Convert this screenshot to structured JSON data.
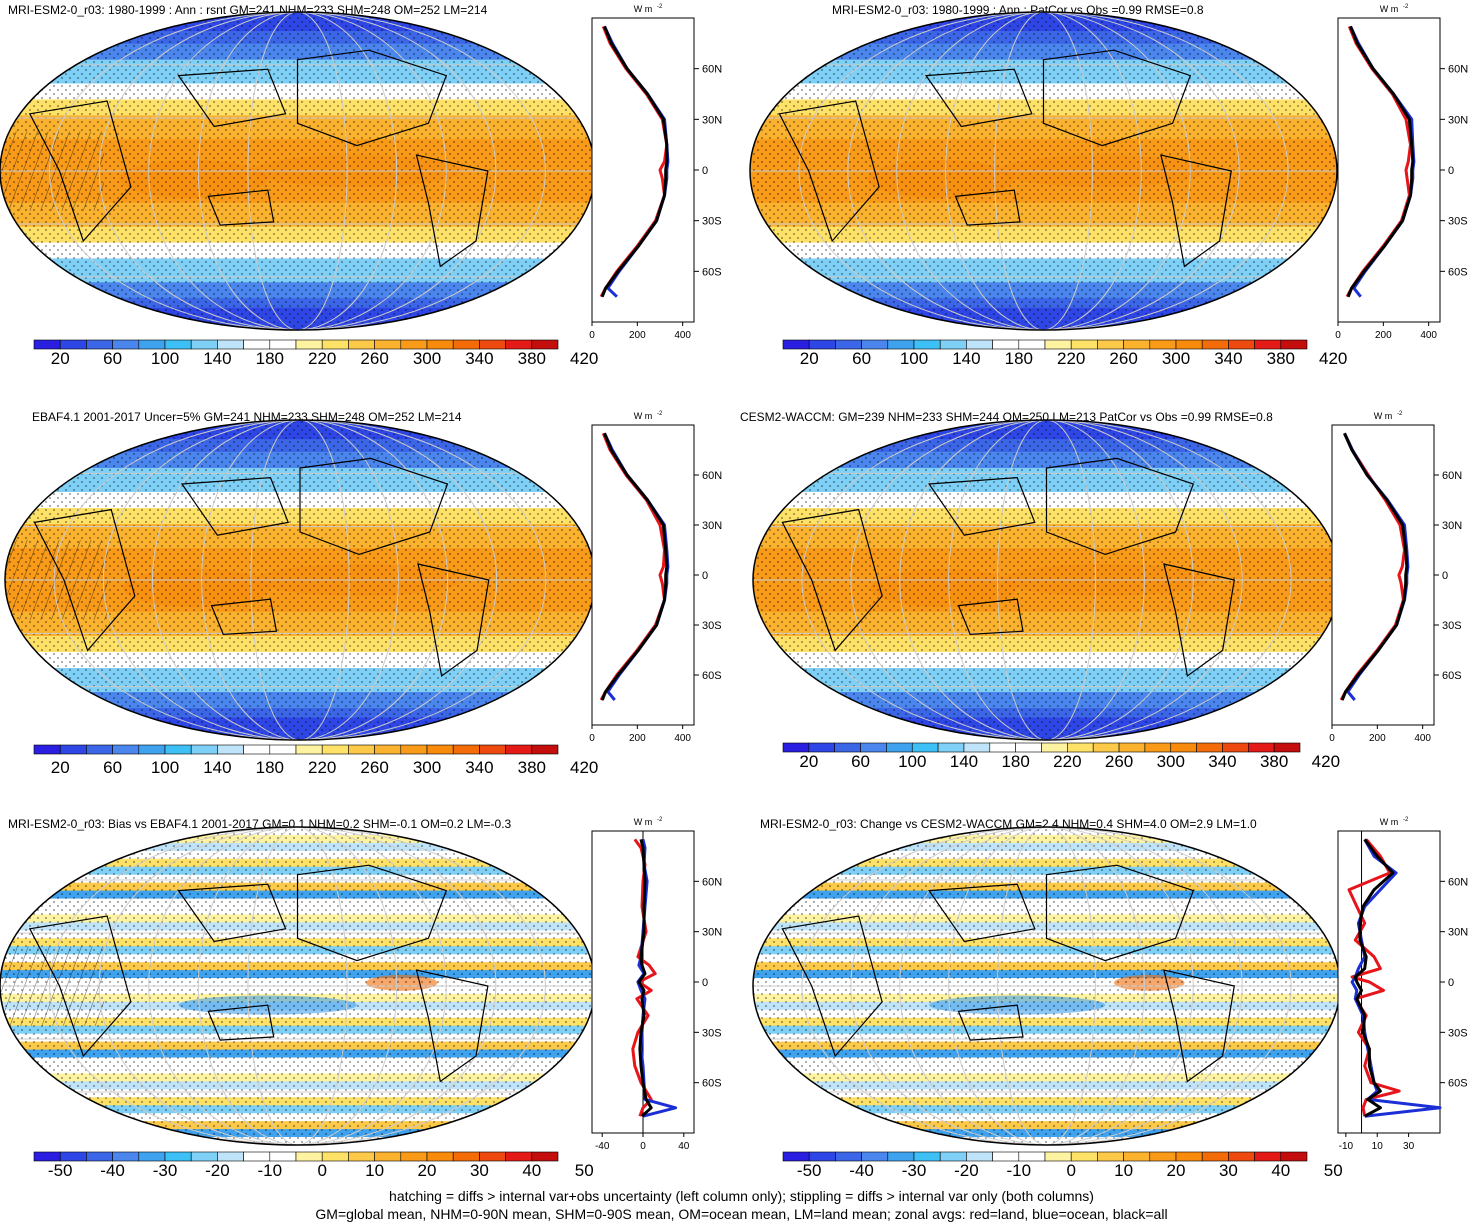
{
  "footer": {
    "line1": "hatching = diffs > internal var+obs uncertainty (left column only); stippling = diffs > internal var only (both columns)",
    "line2": "GM=global mean, NHM=0-90N mean, SHM=0-90S mean, OM=ocean mean, LM=land mean; zonal avgs: red=land, blue=ocean, black=all"
  },
  "colors": {
    "land": "#e8141b",
    "ocean": "#1b2fd6",
    "all": "#000000",
    "abs_palette": [
      "#2a1ee0",
      "#2e46e6",
      "#3c66e8",
      "#4a86ee",
      "#3fa2ee",
      "#3cc0f5",
      "#7ed0f6",
      "#bfe4f9",
      "#ffffff",
      "#ffffff",
      "#fef3a0",
      "#fee167",
      "#fdc948",
      "#fbb22e",
      "#f99b18",
      "#f88a0c",
      "#f46c08",
      "#ee4a10",
      "#e41a16",
      "#c40d0d"
    ],
    "diff_palette": [
      "#2a1ee0",
      "#2e46e6",
      "#3c66e8",
      "#4a86ee",
      "#3fa2ee",
      "#3cc0f5",
      "#7ed0f6",
      "#bfe4f9",
      "#ffffff",
      "#ffffff",
      "#fef3a0",
      "#fee167",
      "#fdc948",
      "#fbb22e",
      "#f99b18",
      "#f88a0c",
      "#f46c08",
      "#ee4a10",
      "#e41a16",
      "#c40d0d"
    ]
  },
  "chart_data": [
    {
      "type": "heatmap",
      "title": "MRI-ESM2-0_r03: 1980-1999 : Ann : rsnt GM=241 NHM=233 SHM=248 OM=252 LM=214",
      "colorbar_labels": [
        "20",
        "60",
        "100",
        "140",
        "180",
        "220",
        "260",
        "300",
        "340",
        "380",
        "420"
      ],
      "zonal": {
        "units": "W m-2",
        "xticks": [
          "0",
          "200",
          "400"
        ],
        "xlim": [
          0,
          450
        ],
        "yticks": [
          "60N",
          "30N",
          "0",
          "30S",
          "60S"
        ],
        "lat": [
          85,
          75,
          60,
          45,
          30,
          15,
          5,
          0,
          -5,
          -15,
          -30,
          -45,
          -60,
          -70,
          -75
        ],
        "series": [
          {
            "name": "land",
            "values": [
              50,
              80,
              150,
              240,
              310,
              330,
              320,
              300,
              310,
              320,
              280,
              200,
              110,
              60,
              40
            ]
          },
          {
            "name": "ocean",
            "values": [
              55,
              90,
              155,
              245,
              320,
              330,
              335,
              330,
              330,
              320,
              285,
              205,
              120,
              70,
              110
            ]
          },
          {
            "name": "all",
            "values": [
              55,
              85,
              155,
              245,
              315,
              330,
              330,
              325,
              325,
              320,
              285,
              205,
              115,
              60,
              45
            ]
          }
        ]
      }
    },
    {
      "type": "heatmap",
      "title": "MRI-ESM2-0_r03: 1980-1999 : Ann : PatCor vs Obs =0.99 RMSE=0.8",
      "colorbar_labels": [
        "20",
        "60",
        "100",
        "140",
        "180",
        "220",
        "260",
        "300",
        "340",
        "380",
        "420"
      ],
      "zonal": {
        "units": "W m-2",
        "xticks": [
          "0",
          "200",
          "400"
        ],
        "xlim": [
          0,
          450
        ],
        "yticks": [
          "60N",
          "30N",
          "0",
          "30S",
          "60S"
        ],
        "lat": [
          85,
          75,
          60,
          45,
          30,
          15,
          5,
          0,
          -5,
          -15,
          -30,
          -45,
          -60,
          -70,
          -75
        ],
        "series": [
          {
            "name": "land",
            "values": [
              50,
              80,
              150,
              240,
              300,
              320,
              310,
              300,
              305,
              315,
              280,
              200,
              110,
              60,
              40
            ]
          },
          {
            "name": "ocean",
            "values": [
              55,
              90,
              155,
              245,
              325,
              330,
              335,
              330,
              330,
              320,
              285,
              205,
              120,
              70,
              100
            ]
          },
          {
            "name": "all",
            "values": [
              55,
              85,
              155,
              245,
              315,
              325,
              330,
              325,
              325,
              320,
              285,
              205,
              115,
              60,
              45
            ]
          }
        ]
      }
    },
    {
      "type": "heatmap",
      "title": "EBAF4.1 2001-2017 Uncer=5% GM=241 NHM=233 SHM=248 OM=252 LM=214",
      "colorbar_labels": [
        "20",
        "60",
        "100",
        "140",
        "180",
        "220",
        "260",
        "300",
        "340",
        "380",
        "420"
      ],
      "zonal": {
        "units": "W m-2",
        "xticks": [
          "0",
          "200",
          "400"
        ],
        "xlim": [
          0,
          450
        ],
        "yticks": [
          "60N",
          "30N",
          "0",
          "30S",
          "60S"
        ],
        "lat": [
          85,
          75,
          60,
          45,
          30,
          15,
          5,
          0,
          -5,
          -15,
          -30,
          -45,
          -60,
          -70,
          -75
        ],
        "series": [
          {
            "name": "land",
            "values": [
              50,
              80,
              150,
              240,
              300,
              320,
              315,
              300,
              310,
              320,
              280,
              200,
              110,
              60,
              40
            ]
          },
          {
            "name": "ocean",
            "values": [
              55,
              90,
              155,
              245,
              320,
              330,
              335,
              330,
              330,
              320,
              285,
              205,
              120,
              70,
              100
            ]
          },
          {
            "name": "all",
            "values": [
              55,
              85,
              155,
              245,
              315,
              325,
              330,
              325,
              325,
              320,
              285,
              205,
              115,
              60,
              45
            ]
          }
        ]
      }
    },
    {
      "type": "heatmap",
      "title": "CESM2-WACCM: GM=239 NHM=233 SHM=244 OM=250 LM=213 PatCor vs Obs =0.99 RMSE=0.8",
      "colorbar_labels": [
        "20",
        "60",
        "100",
        "140",
        "180",
        "220",
        "260",
        "300",
        "340",
        "380",
        "420"
      ],
      "zonal": {
        "units": "W m-2",
        "xticks": [
          "0",
          "200",
          "400"
        ],
        "xlim": [
          0,
          450
        ],
        "yticks": [
          "60N",
          "30N",
          "0",
          "30S",
          "60S"
        ],
        "lat": [
          85,
          75,
          60,
          45,
          30,
          15,
          5,
          0,
          -5,
          -15,
          -30,
          -45,
          -60,
          -70,
          -75
        ],
        "series": [
          {
            "name": "land",
            "values": [
              55,
              90,
              160,
              235,
              300,
              320,
              310,
              295,
              305,
              315,
              280,
              200,
              110,
              60,
              40
            ]
          },
          {
            "name": "ocean",
            "values": [
              55,
              90,
              155,
              245,
              320,
              330,
              335,
              330,
              330,
              320,
              285,
              205,
              120,
              70,
              100
            ]
          },
          {
            "name": "all",
            "values": [
              55,
              88,
              155,
              242,
              312,
              325,
              330,
              325,
              325,
              318,
              285,
              205,
              115,
              60,
              45
            ]
          }
        ]
      }
    },
    {
      "type": "heatmap",
      "title": "MRI-ESM2-0_r03: Bias vs EBAF4.1 2001-2017 GM=0.1 NHM=0.2 SHM=-0.1 OM=0.2 LM=-0.3",
      "colorbar_labels": [
        "-50",
        "-40",
        "-30",
        "-20",
        "-10",
        "0",
        "10",
        "20",
        "30",
        "40",
        "50"
      ],
      "zonal": {
        "units": "W m-2",
        "xticks": [
          "-40",
          "0",
          "40"
        ],
        "xlim": [
          -50,
          50
        ],
        "yticks": [
          "60N",
          "30N",
          "0",
          "30S",
          "60S"
        ],
        "lat": [
          85,
          80,
          70,
          60,
          45,
          30,
          15,
          10,
          5,
          0,
          -5,
          -10,
          -20,
          -30,
          -40,
          -50,
          -60,
          -70,
          -75,
          -80
        ],
        "series": [
          {
            "name": "land",
            "values": [
              -8,
              -2,
              2,
              0,
              -1,
              3,
              -5,
              6,
              12,
              -4,
              8,
              -6,
              5,
              -5,
              -10,
              -8,
              -2,
              8,
              0,
              -3
            ]
          },
          {
            "name": "ocean",
            "values": [
              0,
              2,
              1,
              4,
              2,
              0,
              -2,
              -4,
              1,
              -5,
              -2,
              2,
              0,
              -1,
              -2,
              0,
              1,
              2,
              32,
              0
            ]
          },
          {
            "name": "all",
            "values": [
              -2,
              0,
              1,
              2,
              1,
              1,
              -2,
              -1,
              2,
              -4,
              1,
              -1,
              1,
              -2,
              -3,
              -2,
              0,
              3,
              8,
              -1
            ]
          }
        ]
      }
    },
    {
      "type": "heatmap",
      "title": "MRI-ESM2-0_r03: Change vs CESM2-WACCM GM=2.4 NHM=0.4 SHM=4.0 OM=2.9 LM=1.0",
      "colorbar_labels": [
        "-50",
        "-40",
        "-30",
        "-20",
        "-10",
        "0",
        "10",
        "20",
        "30",
        "40",
        "50"
      ],
      "zonal": {
        "units": "W m-2",
        "xticks": [
          "-10",
          "10",
          "30"
        ],
        "xlim": [
          -15,
          50
        ],
        "yticks": [
          "60N",
          "30N",
          "0",
          "30S",
          "60S"
        ],
        "lat": [
          85,
          75,
          65,
          55,
          45,
          35,
          25,
          15,
          8,
          3,
          0,
          -5,
          -10,
          -20,
          -30,
          -40,
          -50,
          -60,
          -65,
          -70,
          -75,
          -80
        ],
        "series": [
          {
            "name": "land",
            "values": [
              3,
              12,
              18,
              -8,
              -3,
              2,
              -4,
              8,
              12,
              -6,
              5,
              14,
              -4,
              3,
              -2,
              5,
              2,
              6,
              24,
              3,
              1,
              2
            ],
            "color": "land"
          },
          {
            "name": "ocean",
            "values": [
              2,
              8,
              22,
              12,
              2,
              -2,
              0,
              2,
              -2,
              -4,
              -6,
              -3,
              -4,
              1,
              2,
              4,
              6,
              8,
              10,
              4,
              50,
              2
            ]
          },
          {
            "name": "all",
            "values": [
              2,
              10,
              20,
              8,
              1,
              -1,
              -1,
              3,
              2,
              -4,
              -3,
              0,
              -3,
              2,
              1,
              5,
              5,
              8,
              12,
              4,
              12,
              2
            ]
          }
        ]
      }
    }
  ]
}
